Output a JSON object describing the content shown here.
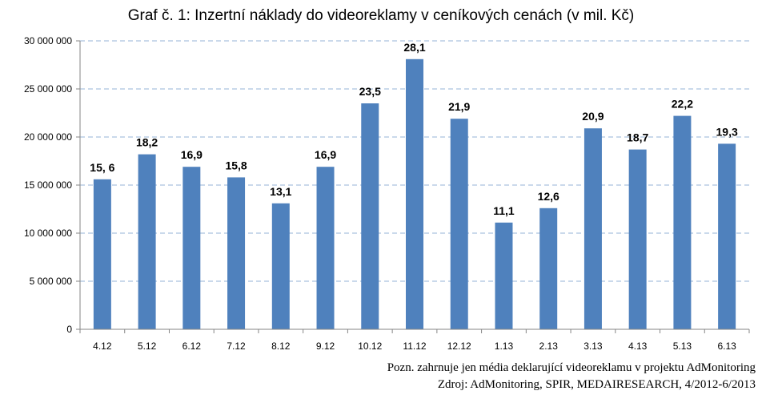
{
  "chart_data": {
    "type": "bar",
    "title": "Graf č. 1: Inzertní náklady do videoreklamy v ceníkových cenách (v mil. Kč)",
    "xlabel": "",
    "ylabel": "",
    "ylim": [
      0,
      30000000
    ],
    "y_ticks": [
      0,
      5000000,
      10000000,
      15000000,
      20000000,
      25000000,
      30000000
    ],
    "y_tick_labels": [
      "0",
      "5 000 000",
      "10 000 000",
      "15 000 000",
      "20 000 000",
      "25 000 000",
      "30 000 000"
    ],
    "grid": "horizontal dashed",
    "categories": [
      "4.12",
      "5.12",
      "6.12",
      "7.12",
      "8.12",
      "9.12",
      "10.12",
      "11.12",
      "12.12",
      "1.13",
      "2.13",
      "3.13",
      "4.13",
      "5.13",
      "6.13"
    ],
    "values": [
      15600000,
      18200000,
      16900000,
      15800000,
      13100000,
      16900000,
      23500000,
      28100000,
      21900000,
      11100000,
      12600000,
      20900000,
      18700000,
      22200000,
      19300000
    ],
    "data_labels": [
      "15, 6",
      "18,2",
      "16,9",
      "15,8",
      "13,1",
      "16,9",
      "23,5",
      "28,1",
      "21,9",
      "11,1",
      "12,6",
      "20,9",
      "18,7",
      "22,2",
      "19,3"
    ],
    "colors": {
      "bar": "#4f81bd",
      "grid": "#95b3d7",
      "axis": "#868686"
    }
  },
  "notes": {
    "line1": "Pozn. zahrnuje jen média deklarující videoreklamu v projektu AdMonitoring",
    "line2": "Zdroj: AdMonitoring, SPIR, MEDAIRESEARCH, 4/2012-6/2013"
  }
}
